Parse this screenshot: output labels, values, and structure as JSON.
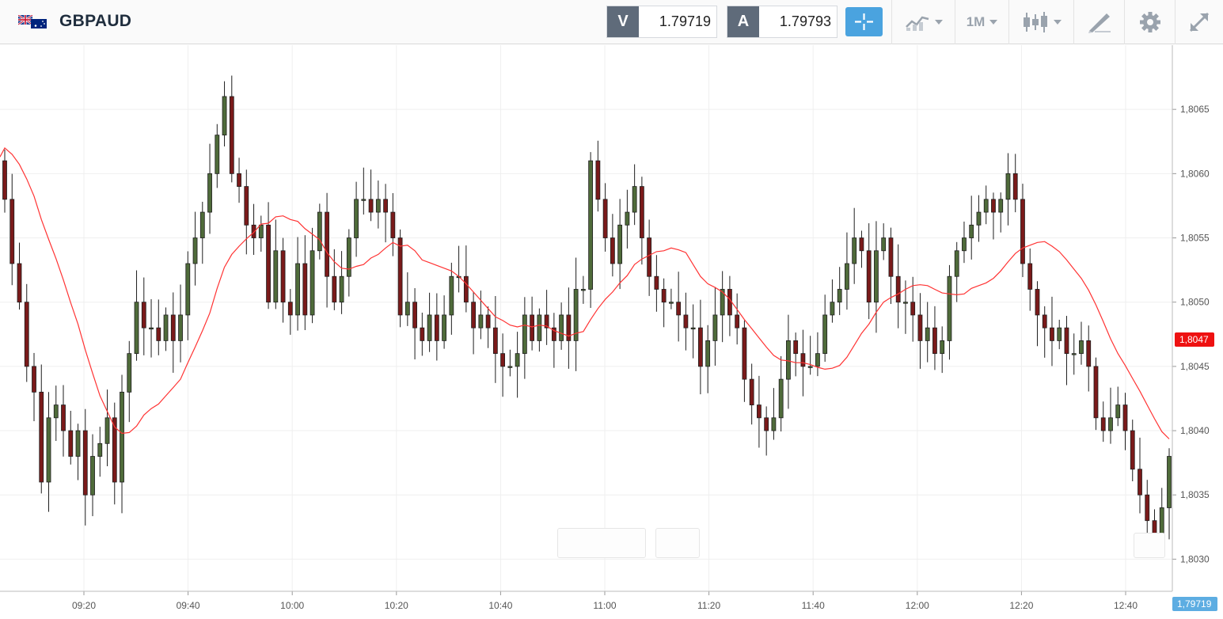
{
  "header": {
    "symbol": "GBPAUD",
    "sell": {
      "label": "V",
      "value": "1.79719"
    },
    "buy": {
      "label": "A",
      "value": "1.79793"
    },
    "timeframe": "1M",
    "tools": [
      "crosshair-icon",
      "chart-type-icon",
      "candlestick-icon",
      "drawing-icon",
      "gear-icon",
      "fullscreen-icon"
    ]
  },
  "colors": {
    "up": "#1e1e1e",
    "up_fill": "#4f6b3a",
    "down_fill": "#7a1a1a",
    "ma": "#ff3333",
    "accent": "#4aa3df",
    "grid": "#efefef",
    "axis_text": "#555555"
  },
  "chart_data": {
    "type": "candlestick",
    "x_labels": [
      "09:20",
      "09:40",
      "10:00",
      "10:20",
      "10:40",
      "11:00",
      "11:20",
      "11:40",
      "12:00",
      "12:20",
      "12:40"
    ],
    "y_ticks": [
      "1,8065",
      "1,8060",
      "1,8055",
      "1,8050",
      "1,8045",
      "1,8040",
      "1,8035",
      "1,8030"
    ],
    "ylim": [
      1.80275,
      1.807
    ],
    "grid": true,
    "ma_value_label": "1,8047",
    "current_price_label": "1,79719",
    "closes": [
      1.8058,
      1.8053,
      1.805,
      1.8045,
      1.8043,
      1.8036,
      1.8041,
      1.8042,
      1.804,
      1.8038,
      1.804,
      1.8035,
      1.8038,
      1.8039,
      1.8041,
      1.8036,
      1.8043,
      1.8046,
      1.805,
      1.8048,
      1.8048,
      1.8047,
      1.8049,
      1.8047,
      1.8049,
      1.8053,
      1.8055,
      1.8057,
      1.806,
      1.8063,
      1.8066,
      1.806,
      1.8059,
      1.8056,
      1.8055,
      1.8056,
      1.805,
      1.8054,
      1.805,
      1.8049,
      1.8053,
      1.8049,
      1.8054,
      1.8057,
      1.8052,
      1.805,
      1.8052,
      1.8055,
      1.8058,
      1.8058,
      1.8057,
      1.8058,
      1.8057,
      1.8055,
      1.8049,
      1.805,
      1.8048,
      1.8047,
      1.8049,
      1.8047,
      1.8049,
      1.8052,
      1.8052,
      1.805,
      1.8048,
      1.8049,
      1.8048,
      1.8046,
      1.8045,
      1.8045,
      1.8046,
      1.8049,
      1.8047,
      1.8049,
      1.8048,
      1.8047,
      1.8049,
      1.8047,
      1.8051,
      1.8051,
      1.8061,
      1.8058,
      1.8055,
      1.8053,
      1.8056,
      1.8057,
      1.8059,
      1.8055,
      1.8052,
      1.8051,
      1.805,
      1.805,
      1.8049,
      1.8048,
      1.8048,
      1.8045,
      1.8047,
      1.8049,
      1.8051,
      1.8049,
      1.8048,
      1.8044,
      1.8042,
      1.8041,
      1.804,
      1.8041,
      1.8044,
      1.8047,
      1.8046,
      1.8045,
      1.8045,
      1.8046,
      1.8049,
      1.805,
      1.8051,
      1.8053,
      1.8055,
      1.8054,
      1.805,
      1.8054,
      1.8055,
      1.8052,
      1.805,
      1.805,
      1.8049,
      1.8047,
      1.8048,
      1.8046,
      1.8047,
      1.8052,
      1.8054,
      1.8055,
      1.8056,
      1.8057,
      1.8058,
      1.8057,
      1.8058,
      1.806,
      1.8058,
      1.8053,
      1.8051,
      1.8049,
      1.8048,
      1.8047,
      1.8048,
      1.8046,
      1.8046,
      1.8047,
      1.8045,
      1.8041,
      1.804,
      1.8041,
      1.8042,
      1.804,
      1.8037,
      1.8035,
      1.8033,
      1.8032,
      1.8034,
      1.8038
    ]
  }
}
